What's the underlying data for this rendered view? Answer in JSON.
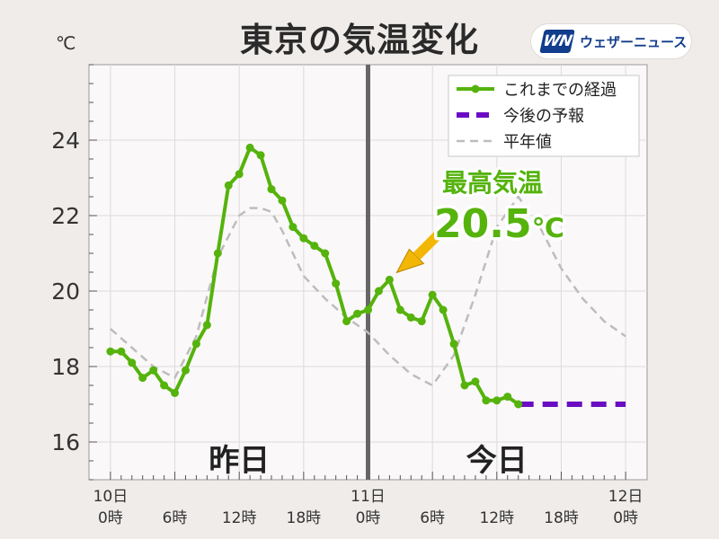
{
  "header": {
    "title": "東京の気温変化",
    "unit": "℃",
    "brand_mark": "WN",
    "brand_name": "ウェザーニュース"
  },
  "colors": {
    "observed": "#55b30c",
    "forecast": "#6a0dc2",
    "normal": "#bdbdbd",
    "divider": "#666666",
    "callout": "#f2b705"
  },
  "chart_data": {
    "type": "line",
    "title": "東京の気温変化",
    "ylabel": "℃",
    "ylim": [
      15,
      26
    ],
    "y_ticks": [
      "16",
      "18",
      "20",
      "22",
      "24"
    ],
    "x_unit": "hours since 10日 0時",
    "xlim": [
      -2,
      50
    ],
    "x_ticks": [
      {
        "x": 0,
        "day": "10日",
        "hour": "0時"
      },
      {
        "x": 6,
        "day": "",
        "hour": "6時"
      },
      {
        "x": 12,
        "day": "",
        "hour": "12時"
      },
      {
        "x": 18,
        "day": "",
        "hour": "18時"
      },
      {
        "x": 24,
        "day": "11日",
        "hour": "0時"
      },
      {
        "x": 30,
        "day": "",
        "hour": "6時"
      },
      {
        "x": 36,
        "day": "",
        "hour": "12時"
      },
      {
        "x": 42,
        "day": "",
        "hour": "18時"
      },
      {
        "x": 48,
        "day": "12日",
        "hour": "0時"
      }
    ],
    "grid": true,
    "legend_position": "top-right",
    "day_divider_x": 24,
    "series": [
      {
        "name": "これまでの経過",
        "style": "solid-with-markers",
        "x": [
          0,
          1,
          2,
          3,
          4,
          5,
          6,
          7,
          8,
          9,
          10,
          11,
          12,
          13,
          14,
          15,
          16,
          17,
          18,
          19,
          20,
          21,
          22,
          23,
          24,
          25,
          26,
          27,
          28,
          29,
          30,
          31,
          32,
          33,
          34,
          35,
          36,
          37,
          38
        ],
        "y": [
          18.4,
          18.4,
          18.1,
          17.7,
          17.9,
          17.5,
          17.3,
          17.9,
          18.6,
          19.1,
          21.0,
          22.8,
          23.1,
          23.8,
          23.6,
          22.7,
          22.4,
          21.7,
          21.4,
          21.2,
          21.0,
          20.2,
          19.2,
          19.4,
          19.5,
          20.0,
          20.3,
          19.5,
          19.3,
          19.2,
          19.9,
          19.5,
          18.6,
          17.5,
          17.6,
          17.1,
          17.1,
          17.2,
          17.0
        ]
      },
      {
        "name": "今後の予報",
        "style": "dashed-thick",
        "x": [
          38,
          48
        ],
        "y": [
          17.0,
          17.0
        ]
      },
      {
        "name": "平年値",
        "style": "dashed",
        "x": [
          0,
          2,
          4,
          6,
          8,
          10,
          12,
          13,
          14,
          15,
          16,
          18,
          20,
          22,
          24,
          26,
          28,
          30,
          32,
          34,
          36,
          38,
          40,
          42,
          44,
          46,
          48
        ],
        "y": [
          19.0,
          18.5,
          18.0,
          17.7,
          18.8,
          20.9,
          22.0,
          22.2,
          22.2,
          22.1,
          21.6,
          20.4,
          19.8,
          19.3,
          18.9,
          18.3,
          17.8,
          17.5,
          18.3,
          19.9,
          21.7,
          22.5,
          21.7,
          20.6,
          19.8,
          19.2,
          18.8
        ]
      }
    ],
    "annotations": {
      "day_labels": [
        {
          "text": "昨日",
          "x": 12
        },
        {
          "text": "今日",
          "x": 36
        }
      ],
      "max_temp_label": "最高気温",
      "max_temp_value": "20.5",
      "max_temp_unit": "℃",
      "max_point_x": 26,
      "max_point_y": 20.3
    }
  }
}
